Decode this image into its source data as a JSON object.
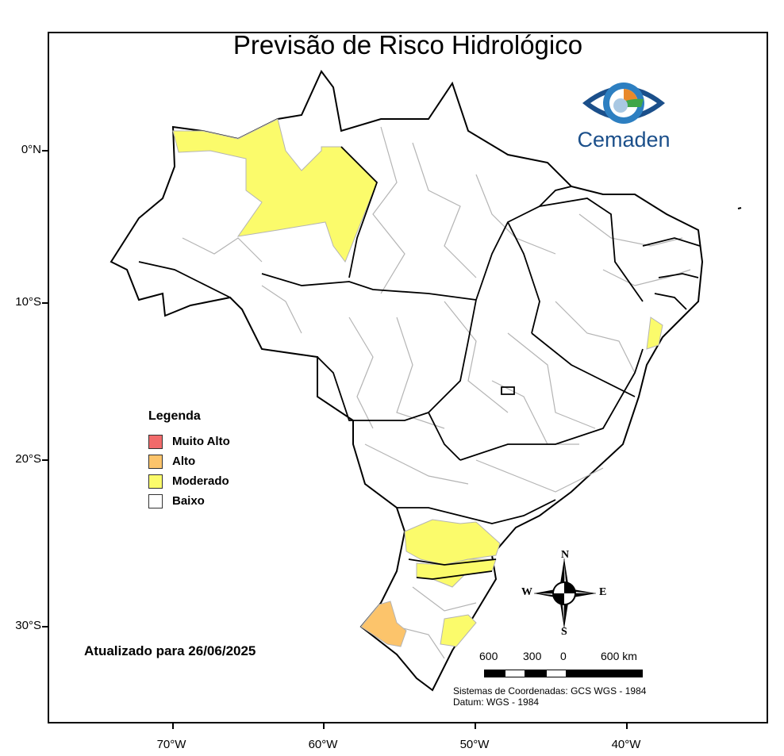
{
  "title": "Previsão de Risco Hidrológico",
  "axes": {
    "lat_labels": [
      "0°N",
      "10°S",
      "20°S",
      "30°S"
    ],
    "lon_labels": [
      "70°W",
      "60°W",
      "50°W",
      "40°W"
    ]
  },
  "legend": {
    "title": "Legenda",
    "items": [
      {
        "label": "Muito Alto",
        "color": "#f26b6b"
      },
      {
        "label": "Alto",
        "color": "#fcc46b"
      },
      {
        "label": "Moderado",
        "color": "#fbfb6b"
      },
      {
        "label": "Baixo",
        "color": "#ffffff"
      }
    ]
  },
  "updated": "Atualizado para 26/06/2025",
  "logo": {
    "name": "Cemaden"
  },
  "scale_bar": {
    "labels": [
      "600",
      "300",
      "0",
      "600 km"
    ]
  },
  "compass": {
    "n": "N",
    "s": "S",
    "e": "E",
    "w": "W"
  },
  "crs": {
    "system": "Sistemas de Coordenadas: GCS WGS - 1984",
    "datum": "Datum: WGS - 1984"
  },
  "colors": {
    "state_border": "#000000",
    "municipal_border": "#b0b0b0",
    "moderate": "#fbfb6b",
    "high": "#fcc46b"
  }
}
